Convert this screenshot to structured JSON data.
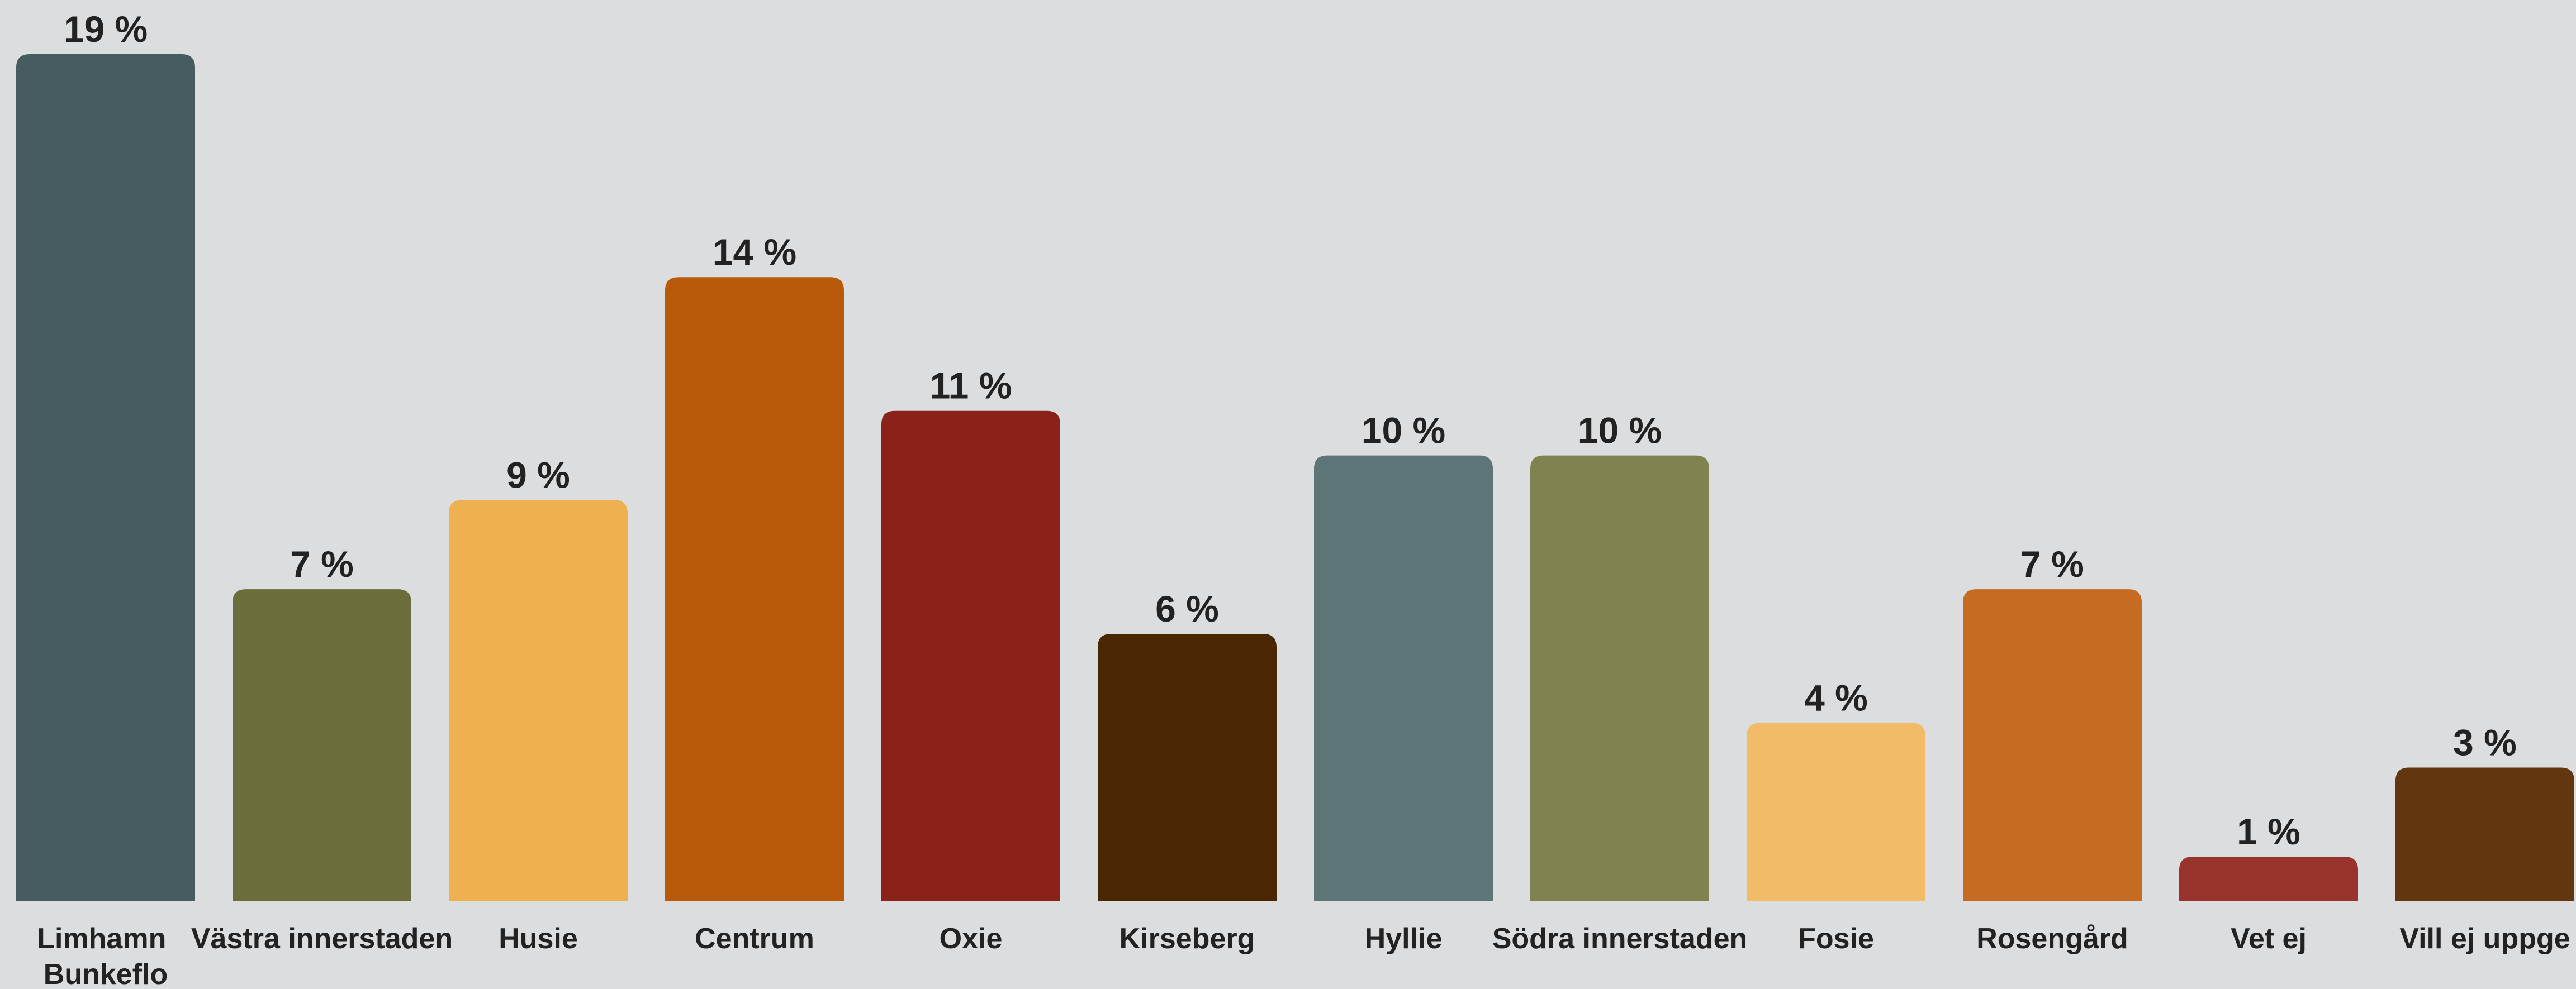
{
  "chart_data": {
    "type": "bar",
    "categories": [
      "Limhamn\nBunkeflo",
      "Västra innerstaden",
      "Husie",
      "Centrum",
      "Oxie",
      "Kirseberg",
      "Hyllie",
      "Södra innerstaden",
      "Fosie",
      "Rosengård",
      "Vet ej",
      "Vill ej uppge"
    ],
    "values": [
      19,
      7,
      9,
      14,
      11,
      6,
      10,
      10,
      4,
      7,
      1,
      3
    ],
    "value_labels": [
      "19 %",
      "7 %",
      "9 %",
      "14 %",
      "11 %",
      "6 %",
      "10 %",
      "10 %",
      "4 %",
      "7 %",
      "1 %",
      "3 %"
    ],
    "colors": [
      "#475c5e",
      "#6b6e3a",
      "#efb14f",
      "#b95a0a",
      "#8a2219",
      "#4a2603",
      "#5e7577",
      "#80834f",
      "#f1bb67",
      "#c66c22",
      "#98342d",
      "#62370f"
    ]
  }
}
